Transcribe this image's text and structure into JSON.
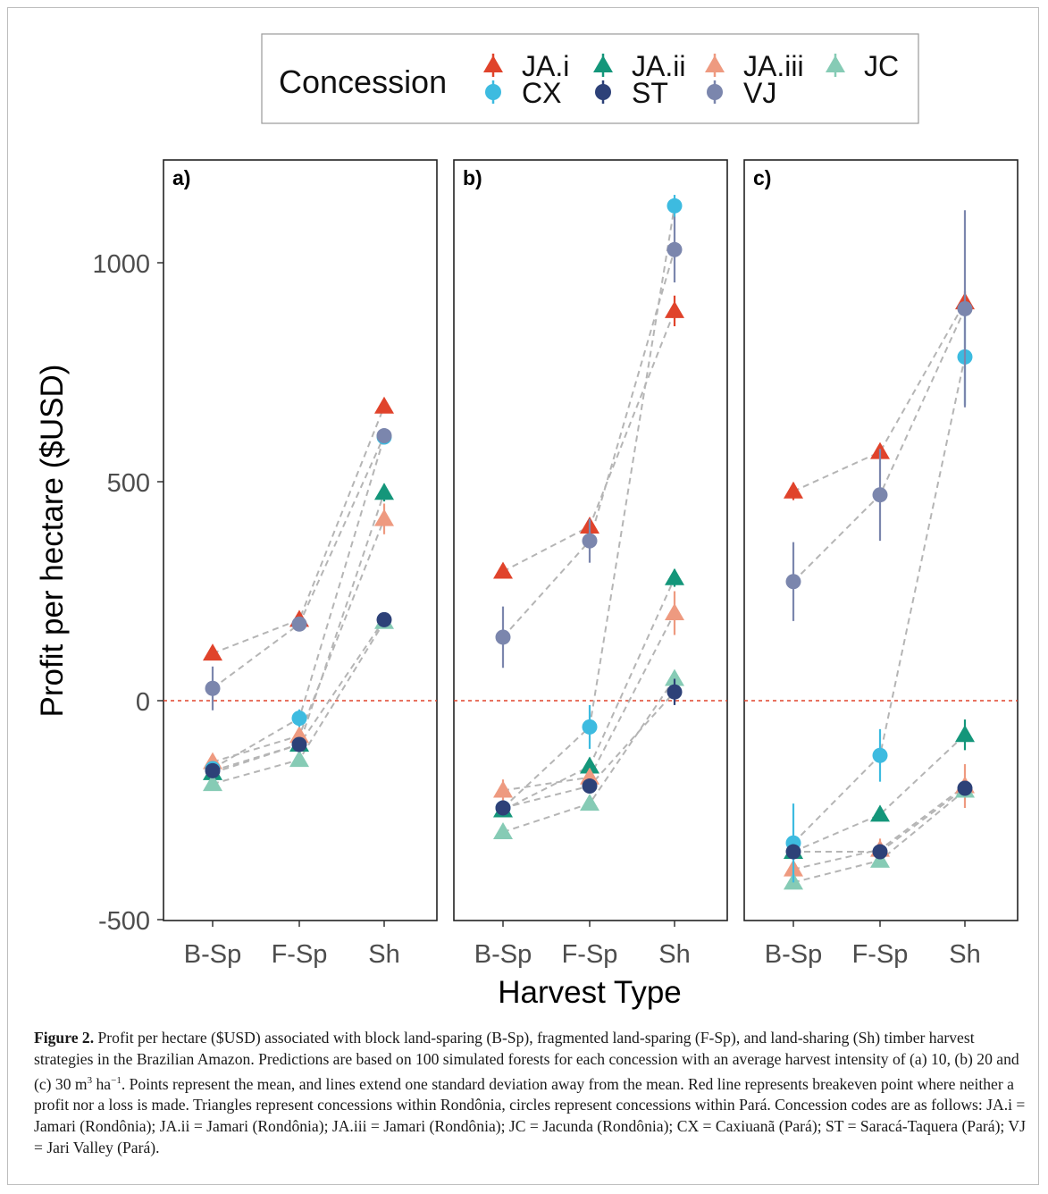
{
  "legend": {
    "title": "Concession",
    "entries": [
      {
        "code": "JA.i",
        "color": "#e0432b",
        "shape": "triangle"
      },
      {
        "code": "JA.ii",
        "color": "#14967a",
        "shape": "triangle"
      },
      {
        "code": "JA.iii",
        "color": "#ee9a80",
        "shape": "triangle"
      },
      {
        "code": "JC",
        "color": "#86cbb5",
        "shape": "triangle"
      },
      {
        "code": "CX",
        "color": "#3dbbe0",
        "shape": "circle"
      },
      {
        "code": "ST",
        "color": "#2d4178",
        "shape": "circle"
      },
      {
        "code": "VJ",
        "color": "#7b86ad",
        "shape": "circle"
      }
    ]
  },
  "caption": {
    "label": "Figure 2.",
    "text_a": " Profit per hectare ($USD) associated with block land-sparing (B-Sp), fragmented land-sparing (F-Sp), and land-sharing (Sh) timber harvest strategies in the Brazilian Amazon. Predictions are based on 100 simulated forests for each concession with an average harvest intensity of (a) 10, (b) 20 and (c) 30 m",
    "sup_a": "3",
    "text_b": " ha",
    "sup_b": "−1",
    "text_c": ". Points represent the mean, and lines extend one standard deviation away from the mean. Red line represents breakeven point where neither a profit nor a loss is made. Triangles represent concessions within Rondônia, circles represent concessions within Pará. Concession codes are as follows: JA.i = Jamari (Rondônia); JA.ii = Jamari (Rondônia); JA.iii = Jamari (Rondônia); JC = Jacunda (Rondônia); CX = Caxiuanã (Pará); ST = Saracá-Taquera (Pará); VJ = Jari Valley (Pará)."
  },
  "chart_data": {
    "type": "scatter",
    "xlabel": "Harvest Type",
    "ylabel": "Profit per hectare ($USD)",
    "categories": [
      "B-Sp",
      "F-Sp",
      "Sh"
    ],
    "ylim": [
      -500,
      1200
    ],
    "yticks": [
      -500,
      0,
      500,
      1000
    ],
    "breakeven": {
      "y": 0,
      "color": "#e0432b",
      "style": "dotted"
    },
    "connector_color": "#b5b5b5",
    "grid": false,
    "legend_position": "top",
    "panels": [
      {
        "label": "a)",
        "series": [
          {
            "name": "JA.i",
            "values": [
              108,
              185,
              672
            ],
            "sd": [
              12,
              12,
              15
            ]
          },
          {
            "name": "JA.ii",
            "values": [
              -165,
              -100,
              475
            ],
            "sd": [
              10,
              10,
              20
            ]
          },
          {
            "name": "JA.iii",
            "values": [
              -140,
              -80,
              415
            ],
            "sd": [
              10,
              10,
              35
            ]
          },
          {
            "name": "JC",
            "values": [
              -190,
              -135,
              180
            ],
            "sd": [
              10,
              10,
              10
            ]
          },
          {
            "name": "CX",
            "values": [
              -155,
              -40,
              602
            ],
            "sd": [
              10,
              20,
              15
            ]
          },
          {
            "name": "ST",
            "values": [
              -160,
              -100,
              185
            ],
            "sd": [
              10,
              10,
              15
            ]
          },
          {
            "name": "VJ",
            "values": [
              28,
              175,
              605
            ],
            "sd": [
              50,
              10,
              15
            ]
          }
        ]
      },
      {
        "label": "b)",
        "series": [
          {
            "name": "JA.i",
            "values": [
              295,
              398,
              890
            ],
            "sd": [
              12,
              15,
              35
            ]
          },
          {
            "name": "JA.ii",
            "values": [
              -250,
              -150,
              280
            ],
            "sd": [
              10,
              20,
              20
            ]
          },
          {
            "name": "JA.iii",
            "values": [
              -205,
              -175,
              200
            ],
            "sd": [
              25,
              20,
              50
            ]
          },
          {
            "name": "JC",
            "values": [
              -300,
              -235,
              50
            ],
            "sd": [
              10,
              10,
              15
            ]
          },
          {
            "name": "CX",
            "values": [
              -245,
              -60,
              1130
            ],
            "sd": [
              10,
              50,
              25
            ]
          },
          {
            "name": "ST",
            "values": [
              -245,
              -195,
              20
            ],
            "sd": [
              10,
              15,
              30
            ]
          },
          {
            "name": "VJ",
            "values": [
              145,
              365,
              1030
            ],
            "sd": [
              70,
              50,
              75
            ]
          }
        ]
      },
      {
        "label": "c)",
        "series": [
          {
            "name": "JA.i",
            "values": [
              478,
              568,
              910
            ],
            "sd": [
              20,
              15,
              25
            ]
          },
          {
            "name": "JA.ii",
            "values": [
              -345,
              -260,
              -78
            ],
            "sd": [
              10,
              15,
              35
            ]
          },
          {
            "name": "JA.iii",
            "values": [
              -385,
              -340,
              -195
            ],
            "sd": [
              10,
              25,
              50
            ]
          },
          {
            "name": "JC",
            "values": [
              -415,
              -365,
              -205
            ],
            "sd": [
              10,
              10,
              10
            ]
          },
          {
            "name": "CX",
            "values": [
              -325,
              -125,
              785
            ],
            "sd": [
              90,
              60,
              110
            ]
          },
          {
            "name": "ST",
            "values": [
              -345,
              -345,
              -200
            ],
            "sd": [
              10,
              10,
              10
            ]
          },
          {
            "name": "VJ",
            "values": [
              272,
              470,
              895
            ],
            "sd": [
              90,
              105,
              225
            ]
          }
        ]
      }
    ]
  }
}
